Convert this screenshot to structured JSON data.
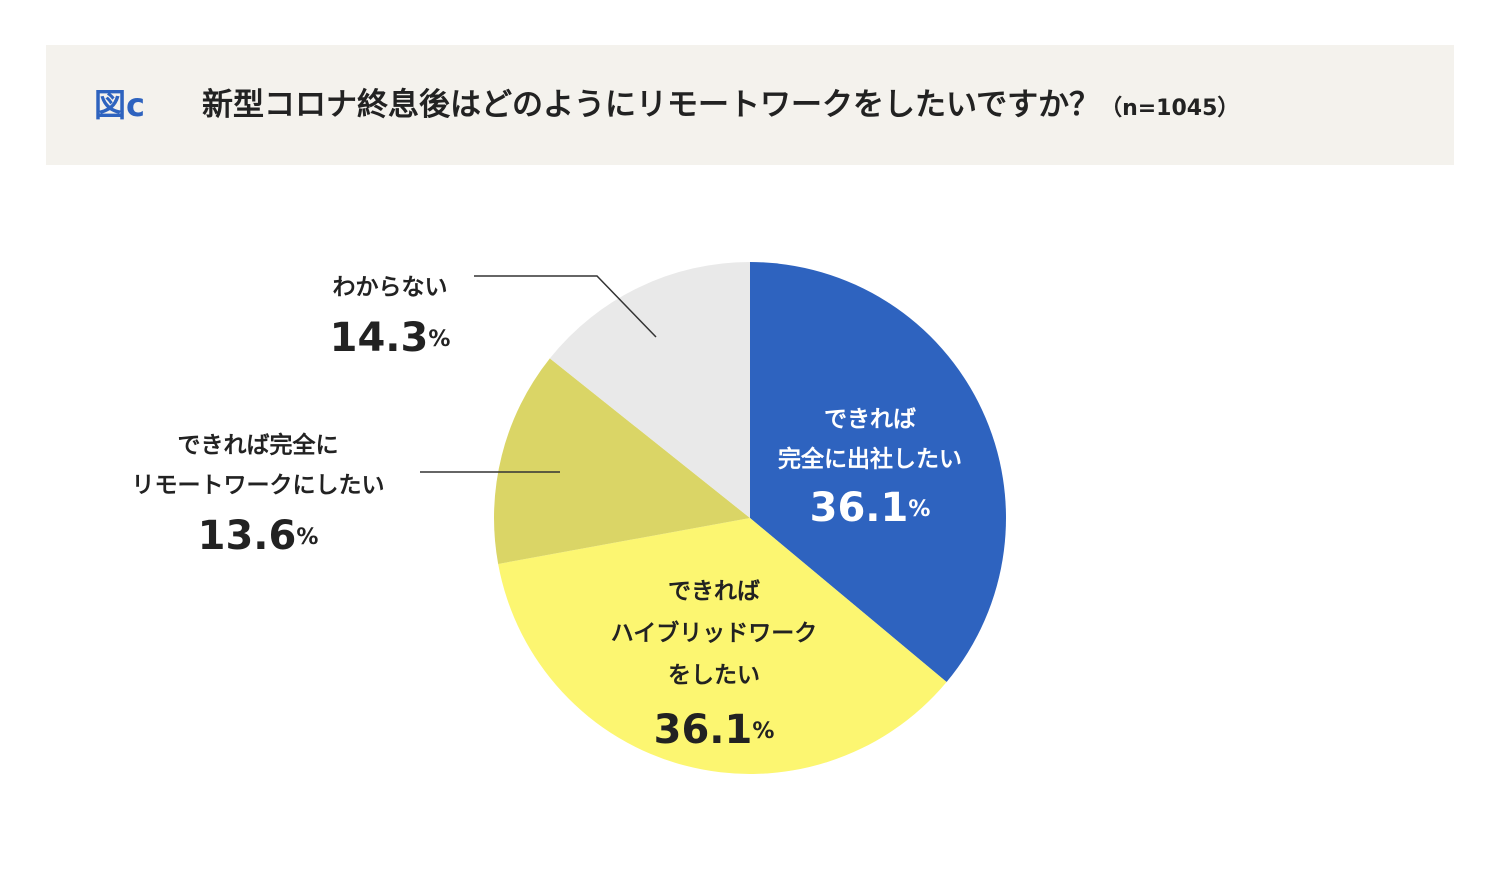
{
  "header": {
    "figure_label": "図c",
    "title": "新型コロナ終息後はどのようにリモートワークをしたいですか？",
    "sample": "（n=1045）"
  },
  "chart_data": {
    "type": "pie",
    "title": "新型コロナ終息後はどのようにリモートワークをしたいですか？",
    "slices": [
      {
        "label_lines": [
          "できれば",
          "完全に出社したい"
        ],
        "value": 36.1,
        "value_text": "36.1",
        "color": "#2e63bf"
      },
      {
        "label_lines": [
          "できれば",
          "ハイブリッドワーク",
          "をしたい"
        ],
        "value": 36.1,
        "value_text": "36.1",
        "color": "#fcf671"
      },
      {
        "label_lines": [
          "できれば完全に",
          "リモートワークにしたい"
        ],
        "value": 13.6,
        "value_text": "13.6",
        "color": "#dad566"
      },
      {
        "label_lines": [
          "わからない"
        ],
        "value": 14.3,
        "value_text": "14.3",
        "color": "#e9e9e9"
      }
    ],
    "unit": "%"
  }
}
